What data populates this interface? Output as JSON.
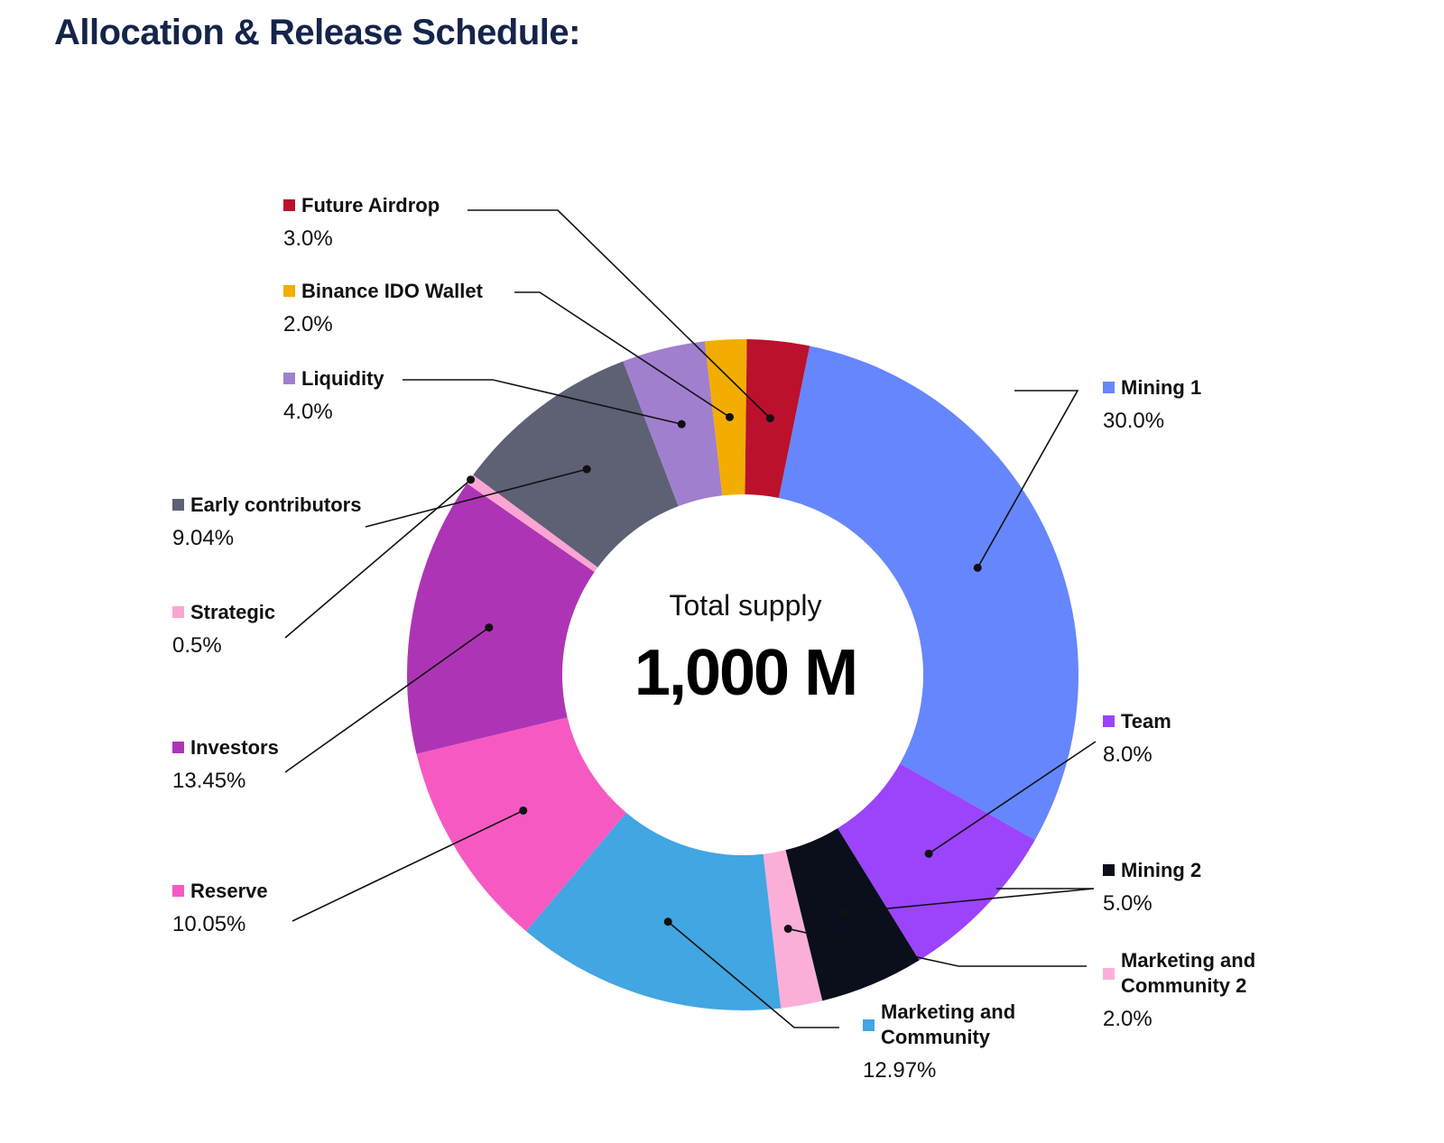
{
  "page": {
    "heading": "Allocation & Release Schedule:"
  },
  "chart_data": {
    "type": "pie",
    "variant": "donut",
    "center_label": "Total supply",
    "center_value": "1,000 M",
    "slices": [
      {
        "name": "Mining 1",
        "value": 30.0,
        "value_label": "30.0%",
        "color": "#6686fd"
      },
      {
        "name": "Team",
        "value": 8.0,
        "value_label": "8.0%",
        "color": "#9b44fc"
      },
      {
        "name": "Mining 2",
        "value": 5.0,
        "value_label": "5.0%",
        "color": "#0b0e1b"
      },
      {
        "name": "Marketing and Community 2",
        "value": 2.0,
        "value_label": "2.0%",
        "color": "#fbafd8"
      },
      {
        "name": "Marketing and Community",
        "value": 12.97,
        "value_label": "12.97%",
        "color": "#41a6e1"
      },
      {
        "name": "Reserve",
        "value": 10.05,
        "value_label": "10.05%",
        "color": "#f65ac2"
      },
      {
        "name": "Investors",
        "value": 13.45,
        "value_label": "13.45%",
        "color": "#ad35b5"
      },
      {
        "name": "Strategic",
        "value": 0.5,
        "value_label": "0.5%",
        "color": "#fba5d3"
      },
      {
        "name": "Early contributors",
        "value": 9.04,
        "value_label": "9.04%",
        "color": "#5e6074"
      },
      {
        "name": "Liquidity",
        "value": 4.0,
        "value_label": "4.0%",
        "color": "#a07fcf"
      },
      {
        "name": "Binance IDO Wallet",
        "value": 2.0,
        "value_label": "2.0%",
        "color": "#f2ad00"
      },
      {
        "name": "Future Airdrop",
        "value": 3.0,
        "value_label": "3.0%",
        "color": "#bb112d"
      }
    ]
  }
}
